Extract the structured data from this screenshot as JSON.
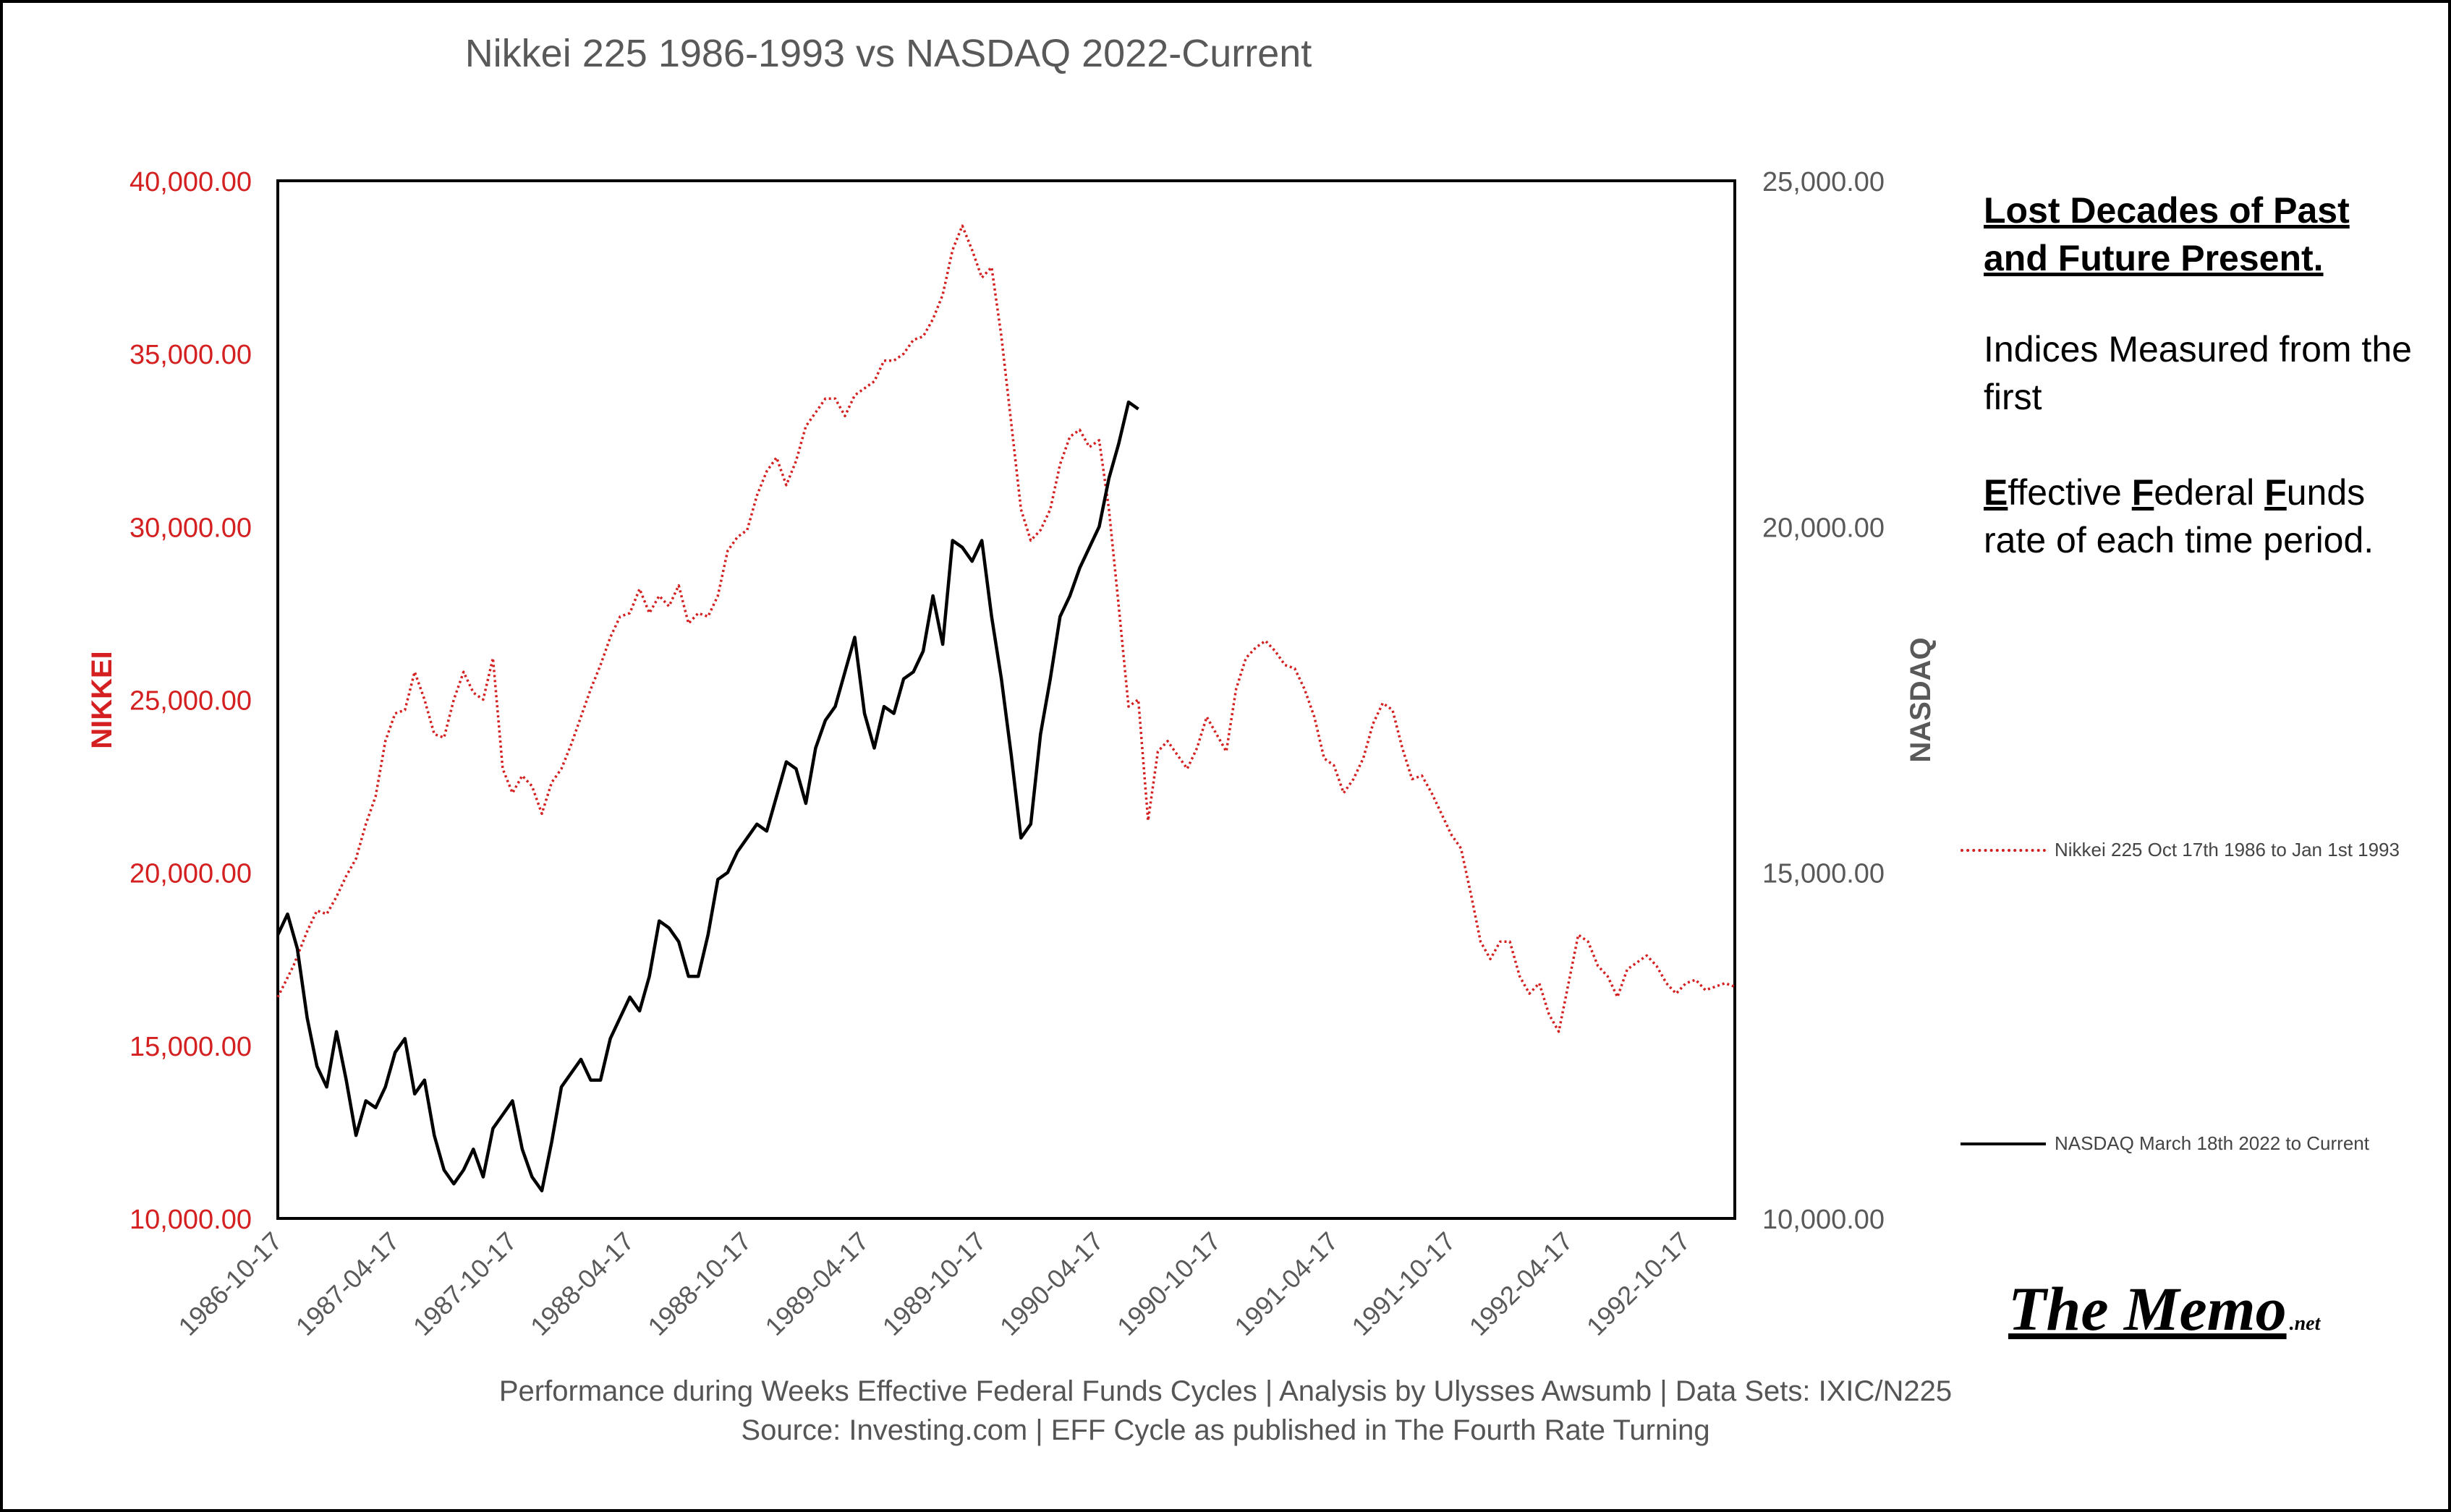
{
  "colors": {
    "nikkei": "#d42020",
    "nasdaq": "#000000",
    "axis_gray": "#595959"
  },
  "notes": {
    "title": "Lost Decades of Past and Future Present.",
    "measured": "Indices Measured from the first",
    "eff_first_letters": [
      "E",
      "F",
      "F"
    ],
    "eff_rest": [
      "ffective ",
      "ederal ",
      "unds"
    ],
    "eff_line2": "rate of each time period."
  },
  "legend": {
    "nikkei": "Nikkei 225 Oct 17th 1986 to Jan 1st 1993",
    "nasdaq": "NASDAQ March 18th 2022 to Current"
  },
  "source": {
    "line1": "Performance during Weeks Effective Federal Funds Cycles | Analysis  by Ulysses Awsumb | Data Sets: IXIC/N225",
    "line2": "Source: Investing.com | EFF Cycle as published in The Fourth Rate Turning"
  },
  "logo": {
    "main": "The Memo",
    "suffix": ".net"
  },
  "chart_data": {
    "type": "line",
    "title": "Nikkei 225 1986-1993 vs NASDAQ 2022-Current",
    "y_left": {
      "label": "NIKKEI",
      "ticks": [
        "10,000.00",
        "15,000.00",
        "20,000.00",
        "25,000.00",
        "30,000.00",
        "35,000.00",
        "40,000.00"
      ],
      "range": [
        10000,
        40000
      ]
    },
    "y_right": {
      "label": "NASDAQ",
      "ticks": [
        "10,000.00",
        "15,000.00",
        "20,000.00",
        "25,000.00"
      ],
      "range": [
        10000,
        25000
      ]
    },
    "x_ticks": [
      "1986-10-17",
      "1987-04-17",
      "1987-10-17",
      "1988-04-17",
      "1988-10-17",
      "1989-04-17",
      "1989-10-17",
      "1990-04-17",
      "1990-10-17",
      "1991-04-17",
      "1991-10-17",
      "1992-04-17",
      "1992-10-17"
    ],
    "x_range": [
      0,
      74.5
    ],
    "series": [
      {
        "name": "Nikkei 225 Oct 17th 1986 to Jan 1st 1993",
        "axis": "left",
        "style": "dotted",
        "points": [
          [
            0,
            16400
          ],
          [
            0.8,
            17300
          ],
          [
            1.5,
            18300
          ],
          [
            2,
            18900
          ],
          [
            2.5,
            18800
          ],
          [
            3,
            19300
          ],
          [
            3.5,
            19900
          ],
          [
            4,
            20400
          ],
          [
            4.5,
            21400
          ],
          [
            5,
            22200
          ],
          [
            5.5,
            23800
          ],
          [
            6,
            24600
          ],
          [
            6.5,
            24700
          ],
          [
            7,
            25800
          ],
          [
            7.5,
            25000
          ],
          [
            8,
            24000
          ],
          [
            8.5,
            23900
          ],
          [
            9,
            25000
          ],
          [
            9.5,
            25800
          ],
          [
            10,
            25200
          ],
          [
            10.5,
            25000
          ],
          [
            11,
            26200
          ],
          [
            11.5,
            23000
          ],
          [
            12,
            22300
          ],
          [
            12.5,
            22800
          ],
          [
            13,
            22500
          ],
          [
            13.5,
            21700
          ],
          [
            14,
            22600
          ],
          [
            14.5,
            23000
          ],
          [
            15,
            23700
          ],
          [
            15.5,
            24500
          ],
          [
            16,
            25300
          ],
          [
            16.5,
            26000
          ],
          [
            17,
            26800
          ],
          [
            17.5,
            27400
          ],
          [
            18,
            27500
          ],
          [
            18.5,
            28200
          ],
          [
            19,
            27500
          ],
          [
            19.5,
            28000
          ],
          [
            20,
            27700
          ],
          [
            20.5,
            28300
          ],
          [
            21,
            27200
          ],
          [
            21.5,
            27500
          ],
          [
            22,
            27400
          ],
          [
            22.5,
            28000
          ],
          [
            23,
            29300
          ],
          [
            23.5,
            29700
          ],
          [
            24,
            29900
          ],
          [
            24.5,
            30900
          ],
          [
            25,
            31600
          ],
          [
            25.5,
            32000
          ],
          [
            26,
            31200
          ],
          [
            26.5,
            31900
          ],
          [
            27,
            32900
          ],
          [
            27.5,
            33300
          ],
          [
            28,
            33700
          ],
          [
            28.5,
            33700
          ],
          [
            29,
            33200
          ],
          [
            29.5,
            33800
          ],
          [
            30,
            34000
          ],
          [
            30.5,
            34200
          ],
          [
            31,
            34800
          ],
          [
            31.5,
            34800
          ],
          [
            32,
            35000
          ],
          [
            32.5,
            35400
          ],
          [
            33,
            35500
          ],
          [
            33.5,
            36000
          ],
          [
            34,
            36700
          ],
          [
            34.5,
            38000
          ],
          [
            35,
            38700
          ],
          [
            35.5,
            38000
          ],
          [
            36,
            37200
          ],
          [
            36.5,
            37500
          ],
          [
            37,
            35500
          ],
          [
            37.5,
            33000
          ],
          [
            38,
            30500
          ],
          [
            38.5,
            29600
          ],
          [
            39,
            29900
          ],
          [
            39.5,
            30500
          ],
          [
            40,
            31800
          ],
          [
            40.5,
            32600
          ],
          [
            41,
            32800
          ],
          [
            41.5,
            32300
          ],
          [
            42,
            32500
          ],
          [
            42.5,
            30500
          ],
          [
            43,
            27700
          ],
          [
            43.5,
            24800
          ],
          [
            44,
            25000
          ],
          [
            44.5,
            21500
          ],
          [
            45,
            23500
          ],
          [
            45.5,
            23800
          ],
          [
            46,
            23400
          ],
          [
            46.5,
            23000
          ],
          [
            47,
            23600
          ],
          [
            47.5,
            24500
          ],
          [
            48,
            24000
          ],
          [
            48.5,
            23500
          ],
          [
            49,
            25300
          ],
          [
            49.5,
            26200
          ],
          [
            50,
            26500
          ],
          [
            50.5,
            26700
          ],
          [
            51,
            26400
          ],
          [
            51.5,
            26000
          ],
          [
            52,
            25900
          ],
          [
            52.5,
            25300
          ],
          [
            53,
            24500
          ],
          [
            53.5,
            23300
          ],
          [
            54,
            23100
          ],
          [
            54.5,
            22300
          ],
          [
            55,
            22700
          ],
          [
            55.5,
            23300
          ],
          [
            56,
            24300
          ],
          [
            56.5,
            24900
          ],
          [
            57,
            24700
          ],
          [
            57.5,
            23600
          ],
          [
            58,
            22700
          ],
          [
            58.5,
            22800
          ],
          [
            59,
            22300
          ],
          [
            59.5,
            21700
          ],
          [
            60,
            21100
          ],
          [
            60.5,
            20700
          ],
          [
            61,
            19400
          ],
          [
            61.5,
            18000
          ],
          [
            62,
            17500
          ],
          [
            62.5,
            18000
          ],
          [
            63,
            18000
          ],
          [
            63.5,
            17000
          ],
          [
            64,
            16500
          ],
          [
            64.5,
            16800
          ],
          [
            65,
            15900
          ],
          [
            65.5,
            15400
          ],
          [
            66,
            16800
          ],
          [
            66.5,
            18200
          ],
          [
            67,
            18000
          ],
          [
            67.5,
            17300
          ],
          [
            68,
            17000
          ],
          [
            68.5,
            16400
          ],
          [
            69,
            17200
          ],
          [
            69.5,
            17400
          ],
          [
            70,
            17600
          ],
          [
            70.5,
            17300
          ],
          [
            71,
            16800
          ],
          [
            71.5,
            16500
          ],
          [
            72,
            16800
          ],
          [
            72.5,
            16900
          ],
          [
            73,
            16600
          ],
          [
            73.5,
            16700
          ],
          [
            74,
            16800
          ],
          [
            74.5,
            16700
          ]
        ]
      },
      {
        "name": "NASDAQ March 18th 2022 to Current",
        "axis": "right",
        "style": "solid",
        "points": [
          [
            0,
            14100
          ],
          [
            0.5,
            14400
          ],
          [
            1,
            13900
          ],
          [
            1.5,
            12900
          ],
          [
            2,
            12200
          ],
          [
            2.5,
            11900
          ],
          [
            3,
            12700
          ],
          [
            3.5,
            12000
          ],
          [
            4,
            11200
          ],
          [
            4.5,
            11700
          ],
          [
            5,
            11600
          ],
          [
            5.5,
            11900
          ],
          [
            6,
            12400
          ],
          [
            6.5,
            12600
          ],
          [
            7,
            11800
          ],
          [
            7.5,
            12000
          ],
          [
            8,
            11200
          ],
          [
            8.5,
            10700
          ],
          [
            9,
            10500
          ],
          [
            9.5,
            10700
          ],
          [
            10,
            11000
          ],
          [
            10.5,
            10600
          ],
          [
            11,
            11300
          ],
          [
            11.5,
            11500
          ],
          [
            12,
            11700
          ],
          [
            12.5,
            11000
          ],
          [
            13,
            10600
          ],
          [
            13.5,
            10400
          ],
          [
            14,
            11100
          ],
          [
            14.5,
            11900
          ],
          [
            15,
            12100
          ],
          [
            15.5,
            12300
          ],
          [
            16,
            12000
          ],
          [
            16.5,
            12000
          ],
          [
            17,
            12600
          ],
          [
            17.5,
            12900
          ],
          [
            18,
            13200
          ],
          [
            18.5,
            13000
          ],
          [
            19,
            13500
          ],
          [
            19.5,
            14300
          ],
          [
            20,
            14200
          ],
          [
            20.5,
            14000
          ],
          [
            21,
            13500
          ],
          [
            21.5,
            13500
          ],
          [
            22,
            14100
          ],
          [
            22.5,
            14900
          ],
          [
            23,
            15000
          ],
          [
            23.5,
            15300
          ],
          [
            24,
            15500
          ],
          [
            24.5,
            15700
          ],
          [
            25,
            15600
          ],
          [
            25.5,
            16100
          ],
          [
            26,
            16600
          ],
          [
            26.5,
            16500
          ],
          [
            27,
            16000
          ],
          [
            27.5,
            16800
          ],
          [
            28,
            17200
          ],
          [
            28.5,
            17400
          ],
          [
            29,
            17900
          ],
          [
            29.5,
            18400
          ],
          [
            30,
            17300
          ],
          [
            30.5,
            16800
          ],
          [
            31,
            17400
          ],
          [
            31.5,
            17300
          ],
          [
            32,
            17800
          ],
          [
            32.5,
            17900
          ],
          [
            33,
            18200
          ],
          [
            33.5,
            19000
          ],
          [
            34,
            18300
          ],
          [
            34.5,
            19800
          ],
          [
            35,
            19700
          ],
          [
            35.5,
            19500
          ],
          [
            36,
            19800
          ],
          [
            36.5,
            18700
          ],
          [
            37,
            17800
          ],
          [
            37.5,
            16700
          ],
          [
            38,
            15500
          ],
          [
            38.5,
            15700
          ],
          [
            39,
            17000
          ],
          [
            39.5,
            17800
          ],
          [
            40,
            18700
          ],
          [
            40.5,
            19000
          ],
          [
            41,
            19400
          ],
          [
            41.5,
            19700
          ],
          [
            42,
            20000
          ],
          [
            42.5,
            20700
          ],
          [
            43,
            21200
          ],
          [
            43.5,
            21800
          ],
          [
            44,
            21700
          ]
        ]
      }
    ]
  }
}
